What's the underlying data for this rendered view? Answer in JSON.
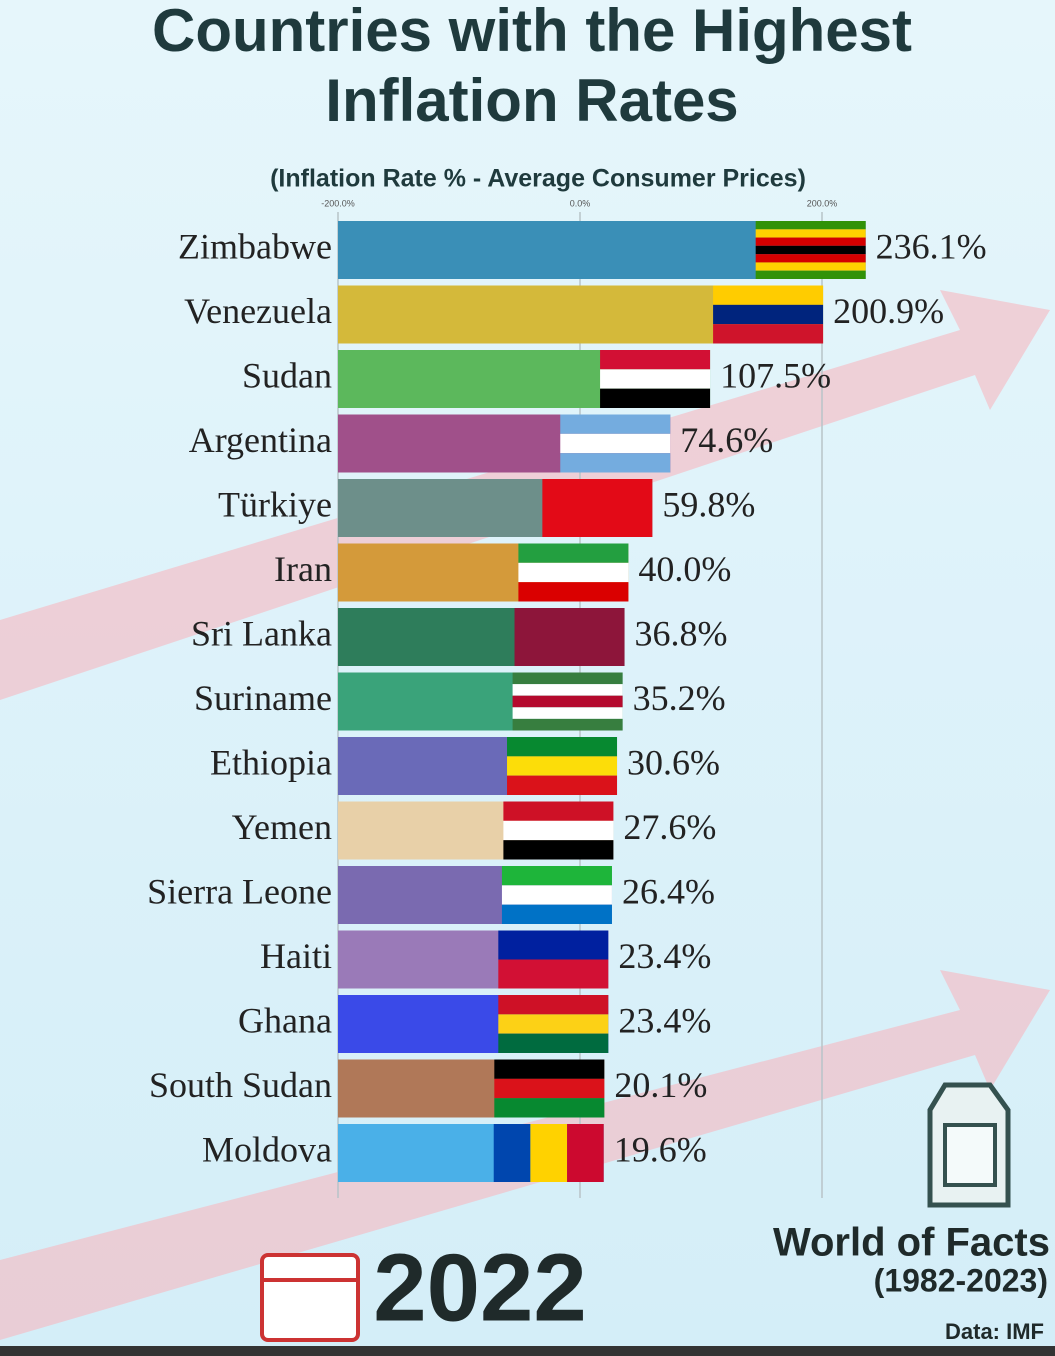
{
  "chart_data": {
    "type": "bar",
    "title": "Countries with the Highest Inflation Rates",
    "subtitle": "(Inflation Rate % - Average Consumer Prices)",
    "categories": [
      "Zimbabwe",
      "Venezuela",
      "Sudan",
      "Argentina",
      "Türkiye",
      "Iran",
      "Sri Lanka",
      "Suriname",
      "Ethiopia",
      "Yemen",
      "Sierra Leone",
      "Haiti",
      "Ghana",
      "South Sudan",
      "Moldova"
    ],
    "values": [
      236.1,
      200.9,
      107.5,
      74.6,
      59.8,
      40.0,
      36.8,
      35.2,
      30.6,
      27.6,
      26.4,
      23.4,
      23.4,
      20.1,
      19.6
    ],
    "value_labels": [
      "236.1%",
      "200.9%",
      "107.5%",
      "74.6%",
      "59.8%",
      "40.0%",
      "36.8%",
      "35.2%",
      "30.6%",
      "27.6%",
      "26.4%",
      "23.4%",
      "23.4%",
      "20.1%",
      "19.6%"
    ],
    "colors": [
      "#3a8fb7",
      "#d4b93a",
      "#5cb85c",
      "#a0508a",
      "#6d8f8a",
      "#d49a3a",
      "#2e7d5b",
      "#3aa37a",
      "#6a6ab8",
      "#e8d0a8",
      "#7a6ab0",
      "#9a7ab8",
      "#3a4ae8",
      "#b07858",
      "#4ab0e8"
    ],
    "xlim": [
      -200,
      260
    ],
    "xticks": [
      {
        "value": -200,
        "label": "-200.0%"
      },
      {
        "value": 0,
        "label": "0.0%"
      },
      {
        "value": 200,
        "label": "200.0%"
      }
    ],
    "grid": true,
    "year": "2022",
    "source_title": "World of Facts",
    "source_years": "(1982-2023)",
    "source": "Data: IMF"
  }
}
